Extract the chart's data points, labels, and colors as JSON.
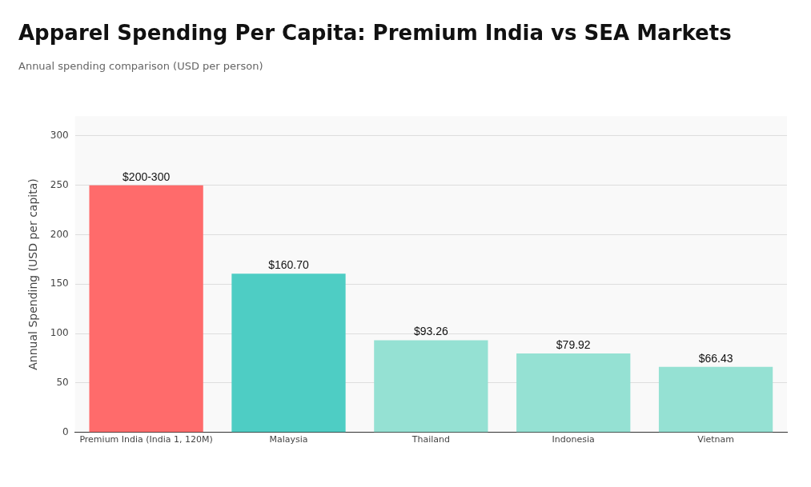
{
  "chart_data": {
    "type": "bar",
    "title": "Apparel Spending Per Capita: Premium India vs SEA Markets",
    "subtitle": "Annual spending comparison (USD per person)",
    "ylabel": "Annual Spending (USD per capita)",
    "categories": [
      "Premium India (India 1, 120M)",
      "Malaysia",
      "Thailand",
      "Indonesia",
      "Vietnam"
    ],
    "values": [
      250,
      160.7,
      93.26,
      79.92,
      66.43
    ],
    "value_labels": [
      "$200-300",
      "$160.70",
      "$93.26",
      "$79.92",
      "$66.43"
    ],
    "colors": [
      "#ff6b6b",
      "#4ecdc4",
      "#95e1d3",
      "#95e1d3",
      "#95e1d3"
    ],
    "ylim": [
      0,
      320
    ],
    "yticks": [
      0,
      50,
      100,
      150,
      200,
      250,
      300
    ],
    "grid": "y",
    "legend": false
  }
}
